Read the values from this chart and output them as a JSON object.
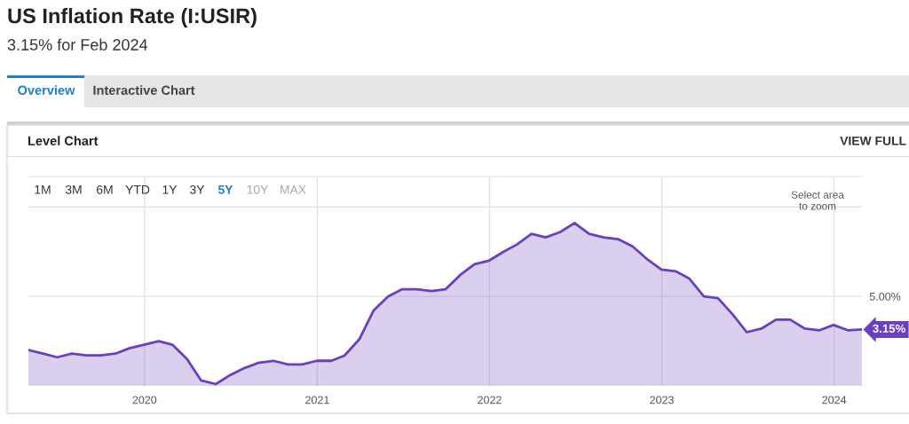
{
  "chart_data": {
    "type": "area",
    "title": "US Inflation Rate (I:USIR)",
    "subtitle": "3.15% for Feb 2024",
    "x": [
      "2019-04-30",
      "2019-05-31",
      "2019-06-30",
      "2019-07-31",
      "2019-08-31",
      "2019-09-30",
      "2019-10-31",
      "2019-11-30",
      "2019-12-31",
      "2020-01-31",
      "2020-02-29",
      "2020-03-31",
      "2020-04-30",
      "2020-05-31",
      "2020-06-30",
      "2020-07-31",
      "2020-08-31",
      "2020-09-30",
      "2020-10-31",
      "2020-11-30",
      "2020-12-31",
      "2021-01-31",
      "2021-02-28",
      "2021-03-31",
      "2021-04-30",
      "2021-05-31",
      "2021-06-30",
      "2021-07-31",
      "2021-08-31",
      "2021-09-30",
      "2021-10-31",
      "2021-11-30",
      "2021-12-31",
      "2022-01-31",
      "2022-02-28",
      "2022-03-31",
      "2022-04-30",
      "2022-05-31",
      "2022-06-30",
      "2022-07-31",
      "2022-08-31",
      "2022-09-30",
      "2022-10-31",
      "2022-11-30",
      "2022-12-31",
      "2023-01-31",
      "2023-02-28",
      "2023-03-31",
      "2023-04-30",
      "2023-05-31",
      "2023-06-30",
      "2023-07-31",
      "2023-08-31",
      "2023-09-30",
      "2023-10-31",
      "2023-11-30",
      "2023-12-31",
      "2024-01-31",
      "2024-02-29"
    ],
    "series": [
      {
        "color": "#6a3fc0",
        "values": [
          2.0,
          1.8,
          1.6,
          1.8,
          1.7,
          1.7,
          1.8,
          2.1,
          2.3,
          2.5,
          2.3,
          1.5,
          0.3,
          0.1,
          0.6,
          1.0,
          1.3,
          1.4,
          1.2,
          1.2,
          1.4,
          1.4,
          1.7,
          2.6,
          4.2,
          5.0,
          5.4,
          5.4,
          5.3,
          5.4,
          6.2,
          6.8,
          7.0,
          7.5,
          7.9,
          8.5,
          8.3,
          8.6,
          9.1,
          8.5,
          8.3,
          8.2,
          7.8,
          7.1,
          6.5,
          6.4,
          6.0,
          5.0,
          4.9,
          4.0,
          3.0,
          3.2,
          3.7,
          3.7,
          3.2,
          3.1,
          3.4,
          3.1,
          3.15
        ]
      }
    ],
    "xlim": [
      "2019-04-30",
      "2024-02-29"
    ],
    "xticks": [
      {
        "value": "2020-01-01",
        "label": "2020"
      },
      {
        "value": "2021-01-01",
        "label": "2021"
      },
      {
        "value": "2022-01-01",
        "label": "2022"
      },
      {
        "value": "2023-01-01",
        "label": "2023"
      },
      {
        "value": "2024-01-01",
        "label": "2024"
      }
    ],
    "ylim": [
      0,
      11.7
    ],
    "yticks": [
      {
        "value": 5,
        "label": "5.00%"
      },
      {
        "value": 10,
        "label": null
      }
    ],
    "grid": true,
    "annotations": [
      "Overview",
      "Interactive Chart",
      "Level Chart",
      "VIEW FULL",
      "1M",
      "3M",
      "6M",
      "YTD",
      "1Y",
      "3Y",
      "5Y",
      "10Y",
      "MAX",
      "Select area\nto zoom",
      {
        "text": "3.15%",
        "x": "2024-02-29",
        "y": 3.15
      }
    ]
  }
}
